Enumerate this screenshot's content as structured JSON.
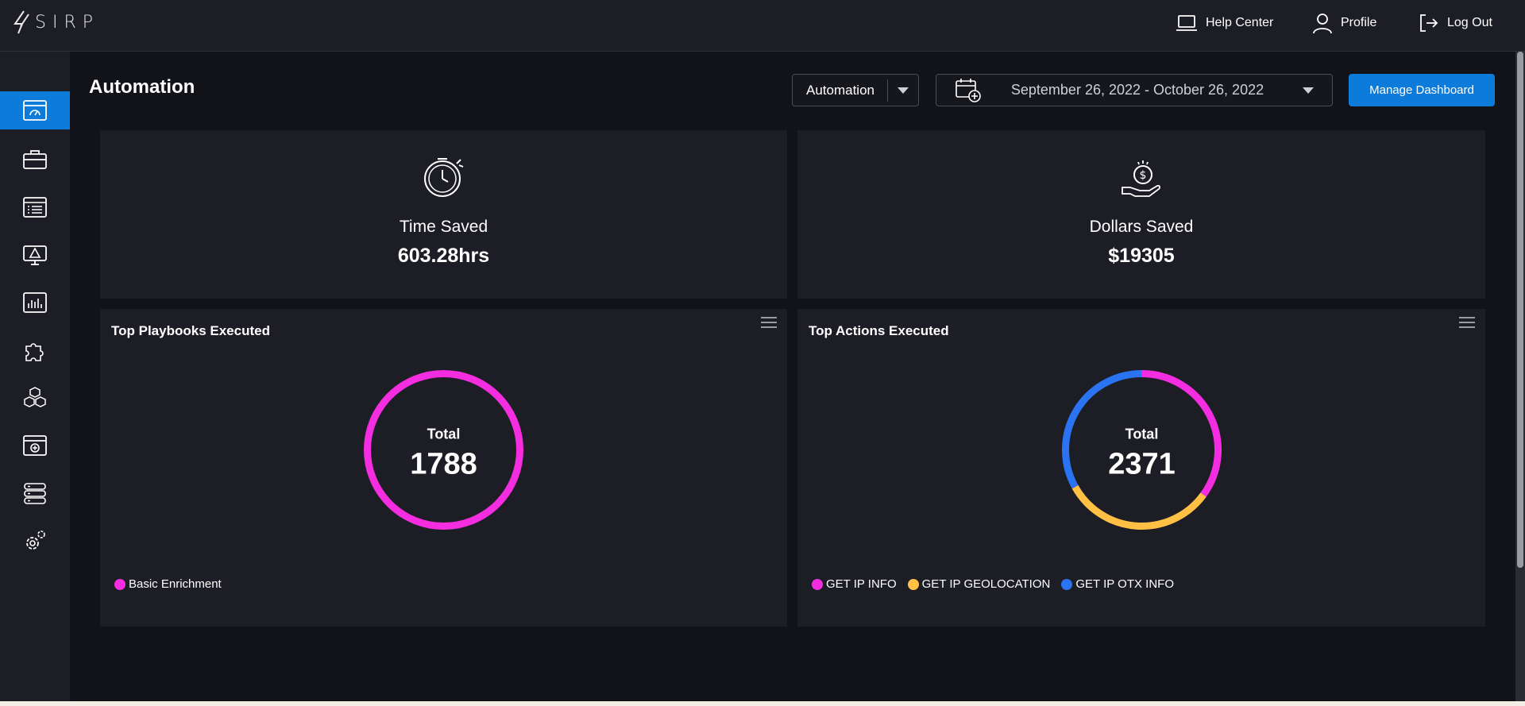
{
  "app": {
    "logo_text": "SIRP"
  },
  "topnav": {
    "help_label": "Help Center",
    "profile_label": "Profile",
    "logout_label": "Log Out"
  },
  "sidebar": {
    "items": [
      {
        "icon": "dashboard-icon",
        "active": true
      },
      {
        "icon": "briefcase-icon",
        "active": false
      },
      {
        "icon": "list-icon",
        "active": false
      },
      {
        "icon": "monitor-alert-icon",
        "active": false
      },
      {
        "icon": "bar-chart-icon",
        "active": false
      },
      {
        "icon": "puzzle-icon",
        "active": false
      },
      {
        "icon": "cubes-icon",
        "active": false
      },
      {
        "icon": "integrations-icon",
        "active": false
      },
      {
        "icon": "database-icon",
        "active": false
      },
      {
        "icon": "settings-icon",
        "active": false
      }
    ]
  },
  "header": {
    "title": "Automation",
    "dashboard_select": "Automation",
    "date_range": "September 26, 2022 - October 26, 2022",
    "manage_button": "Manage Dashboard"
  },
  "stats": {
    "time_saved": {
      "label": "Time Saved",
      "value": "603.28hrs"
    },
    "dollars_saved": {
      "label": "Dollars Saved",
      "value": "$19305"
    }
  },
  "colors": {
    "accent": "#0d7bd9",
    "magenta": "#f42ee0",
    "yellow": "#ffc044",
    "blue": "#2a73f2"
  },
  "chart_data": [
    {
      "type": "pie",
      "title": "Top Playbooks Executed",
      "center_label": "Total",
      "center_value": "1788",
      "categories": [
        "Basic Enrichment"
      ],
      "values": [
        1788
      ],
      "colors": [
        "#f42ee0"
      ]
    },
    {
      "type": "pie",
      "title": "Top Actions Executed",
      "center_label": "Total",
      "center_value": "2371",
      "categories": [
        "GET IP INFO",
        "GET IP GEOLOCATION",
        "GET IP OTX INFO"
      ],
      "values": [
        830,
        757,
        784
      ],
      "colors": [
        "#f42ee0",
        "#ffc044",
        "#2a73f2"
      ]
    }
  ]
}
